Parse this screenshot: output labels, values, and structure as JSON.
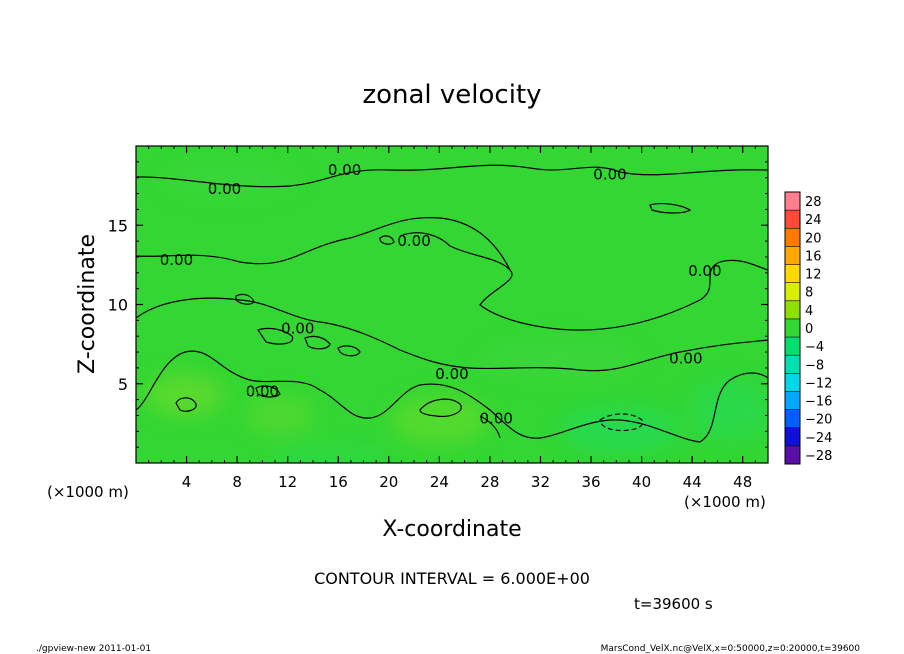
{
  "chart_data": {
    "type": "heatmap",
    "title": "zonal velocity",
    "xlabel": "X-coordinate",
    "ylabel": "Z-coordinate",
    "x_unit": "(×1000 m)",
    "y_unit": "(×1000 m)",
    "xlim": [
      0,
      50
    ],
    "ylim": [
      0,
      20
    ],
    "x_ticks": [
      "4",
      "8",
      "12",
      "16",
      "20",
      "24",
      "28",
      "32",
      "36",
      "40",
      "44",
      "48"
    ],
    "y_ticks": [
      "5",
      "10",
      "15"
    ],
    "x_tick_values": [
      4,
      8,
      12,
      16,
      20,
      24,
      28,
      32,
      36,
      40,
      44,
      48
    ],
    "y_tick_values": [
      5,
      10,
      15
    ],
    "contour_labels": [
      {
        "text": "0.00",
        "x": 16.5,
        "z": 18.5
      },
      {
        "text": "0.00",
        "x": 7.0,
        "z": 17.3
      },
      {
        "text": "0.00",
        "x": 37.5,
        "z": 18.2
      },
      {
        "text": "0.00",
        "x": 22.0,
        "z": 14.0
      },
      {
        "text": "0.00",
        "x": 3.2,
        "z": 12.8
      },
      {
        "text": "0.00",
        "x": 45.0,
        "z": 12.1
      },
      {
        "text": "0.00",
        "x": 12.8,
        "z": 8.5
      },
      {
        "text": "0.00",
        "x": 43.5,
        "z": 6.6
      },
      {
        "text": "0.00",
        "x": 25.0,
        "z": 5.6
      },
      {
        "text": "0.00",
        "x": 10.0,
        "z": 4.5
      },
      {
        "text": "0.00",
        "x": 28.5,
        "z": 2.8
      }
    ],
    "colorbar": {
      "levels": [
        "28",
        "24",
        "20",
        "16",
        "12",
        "8",
        "4",
        "0",
        "−4",
        "−8",
        "−12",
        "−16",
        "−20",
        "−24",
        "−28"
      ],
      "colors": [
        "#ff7f8f",
        "#ff4a3a",
        "#ff7a00",
        "#ffa800",
        "#ffd800",
        "#d8f000",
        "#8ee000",
        "#33d633",
        "#00e070",
        "#00e0b0",
        "#00d8e8",
        "#00a8ff",
        "#0060ff",
        "#1010d8",
        "#5a10a8"
      ]
    },
    "fill_color": "#33d633"
  },
  "contour_interval": "CONTOUR INTERVAL = 6.000E+00",
  "time_label": "t=39600 s",
  "footer_left": "./gpview-new   2011-01-01",
  "footer_right": "MarsCond_VelX.nc@VelX,x=0:50000,z=0:20000,t=39600"
}
